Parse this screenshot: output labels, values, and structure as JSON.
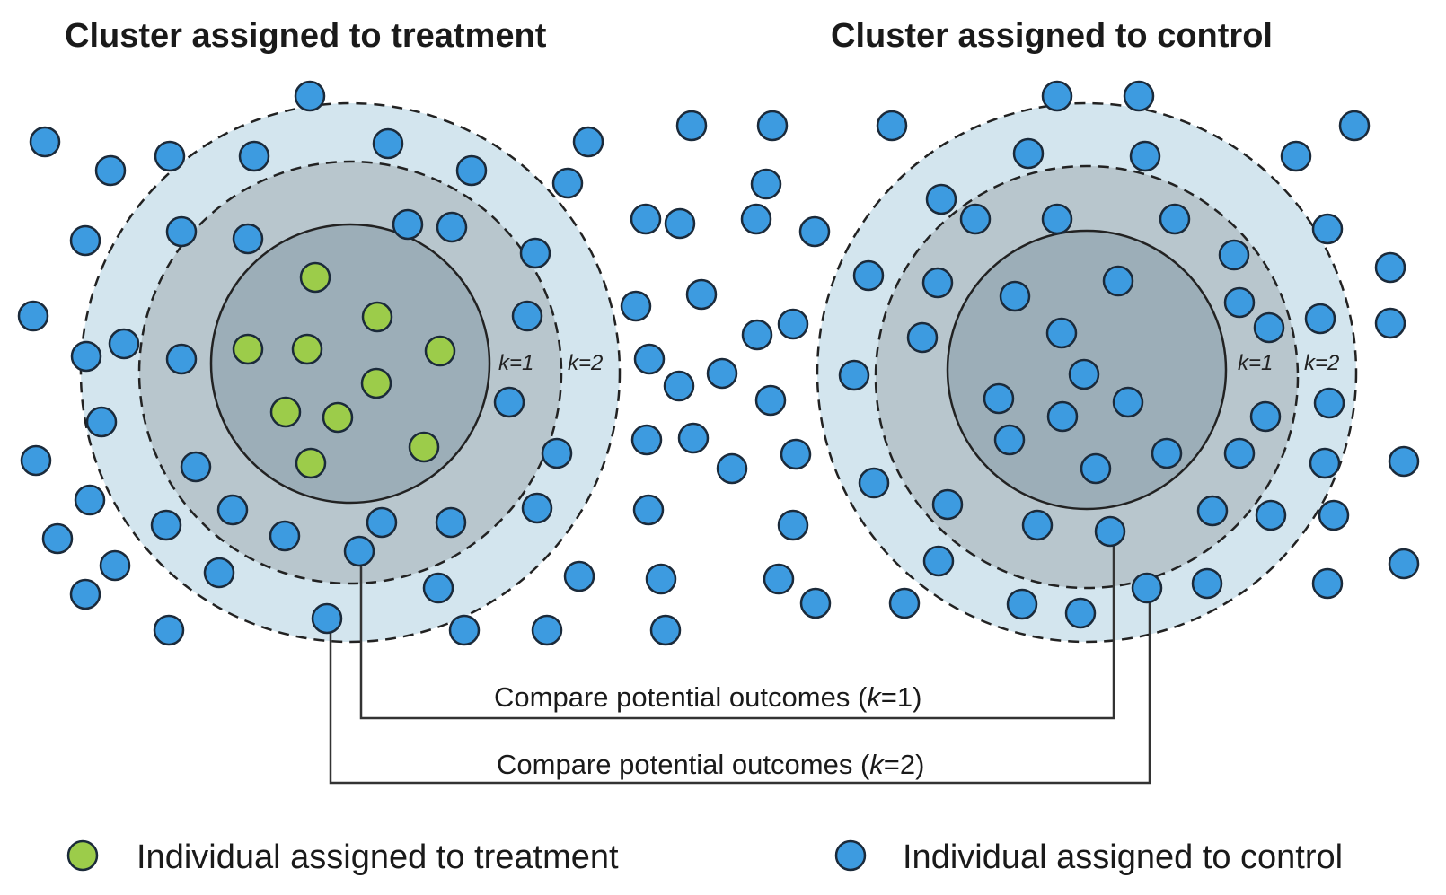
{
  "titles": {
    "treatment": "Cluster assigned to treatment",
    "control": "Cluster assigned to control"
  },
  "rings": {
    "k1": "k=1",
    "k2": "k=2"
  },
  "comparisons": {
    "k1_prefix": "Compare potential outcomes (",
    "k1_var": "k",
    "k1_suffix": "=1)",
    "k2_prefix": "Compare potential outcomes (",
    "k2_var": "k",
    "k2_suffix": "=2)"
  },
  "legend": {
    "treatment": "Individual assigned to treatment",
    "control": "Individual assigned to control"
  },
  "colors": {
    "treatment_dot": "#9ccc4a",
    "control_dot": "#3d9be0",
    "ring_outer": "#d3e5ee",
    "ring_mid": "#b8c6cd",
    "ring_inner": "#9caeb8"
  }
}
